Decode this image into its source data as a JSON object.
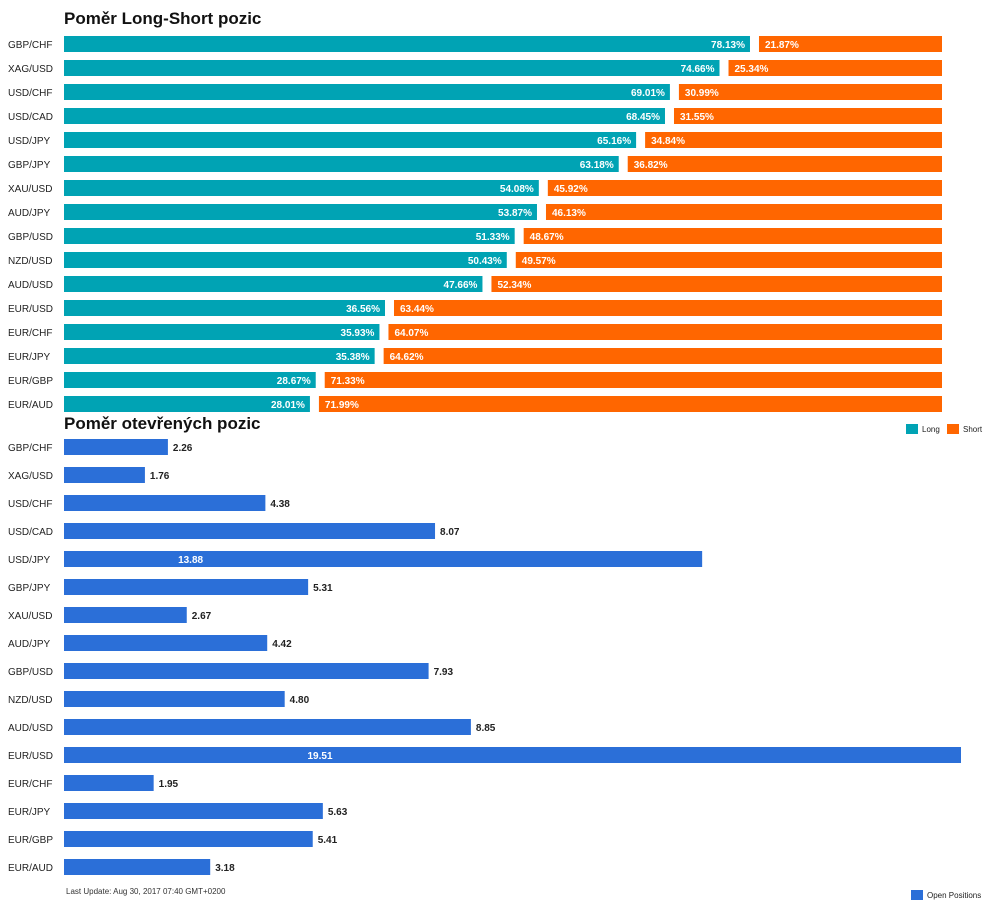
{
  "colors": {
    "long": "#00a3b4",
    "short": "#ff6600",
    "open": "#2b6fd8"
  },
  "chart_data": [
    {
      "type": "bar",
      "stacked": true,
      "orientation": "horizontal",
      "title": "Poměr Long-Short pozic",
      "categories": [
        "GBP/CHF",
        "XAG/USD",
        "USD/CHF",
        "USD/CAD",
        "USD/JPY",
        "GBP/JPY",
        "XAU/USD",
        "AUD/JPY",
        "GBP/USD",
        "NZD/USD",
        "AUD/USD",
        "EUR/USD",
        "EUR/CHF",
        "EUR/JPY",
        "EUR/GBP",
        "EUR/AUD"
      ],
      "series": [
        {
          "name": "Long",
          "values": [
            78.13,
            74.66,
            69.01,
            68.45,
            65.16,
            63.18,
            54.08,
            53.87,
            51.33,
            50.43,
            47.66,
            36.56,
            35.93,
            35.38,
            28.67,
            28.01
          ]
        },
        {
          "name": "Short",
          "values": [
            21.87,
            25.34,
            30.99,
            31.55,
            34.84,
            36.82,
            45.92,
            46.13,
            48.67,
            49.57,
            52.34,
            63.44,
            64.07,
            64.62,
            71.33,
            71.99
          ]
        }
      ],
      "value_format": "%",
      "legend": "top-right"
    },
    {
      "type": "bar",
      "orientation": "horizontal",
      "title": "Poměr otevřených pozic",
      "categories": [
        "GBP/CHF",
        "XAG/USD",
        "USD/CHF",
        "USD/CAD",
        "USD/JPY",
        "GBP/JPY",
        "XAU/USD",
        "AUD/JPY",
        "GBP/USD",
        "NZD/USD",
        "AUD/USD",
        "EUR/USD",
        "EUR/CHF",
        "EUR/JPY",
        "EUR/GBP",
        "EUR/AUD"
      ],
      "series": [
        {
          "name": "Open Positions",
          "values": [
            2.26,
            1.76,
            4.38,
            8.07,
            13.88,
            5.31,
            2.67,
            4.42,
            7.93,
            4.8,
            8.85,
            19.51,
            1.95,
            5.63,
            5.41,
            3.18
          ]
        }
      ],
      "xlim": [
        0,
        19.51
      ],
      "legend": "bottom-right"
    }
  ],
  "footer": "Last Update: Aug 30, 2017 07:40 GMT+0200"
}
